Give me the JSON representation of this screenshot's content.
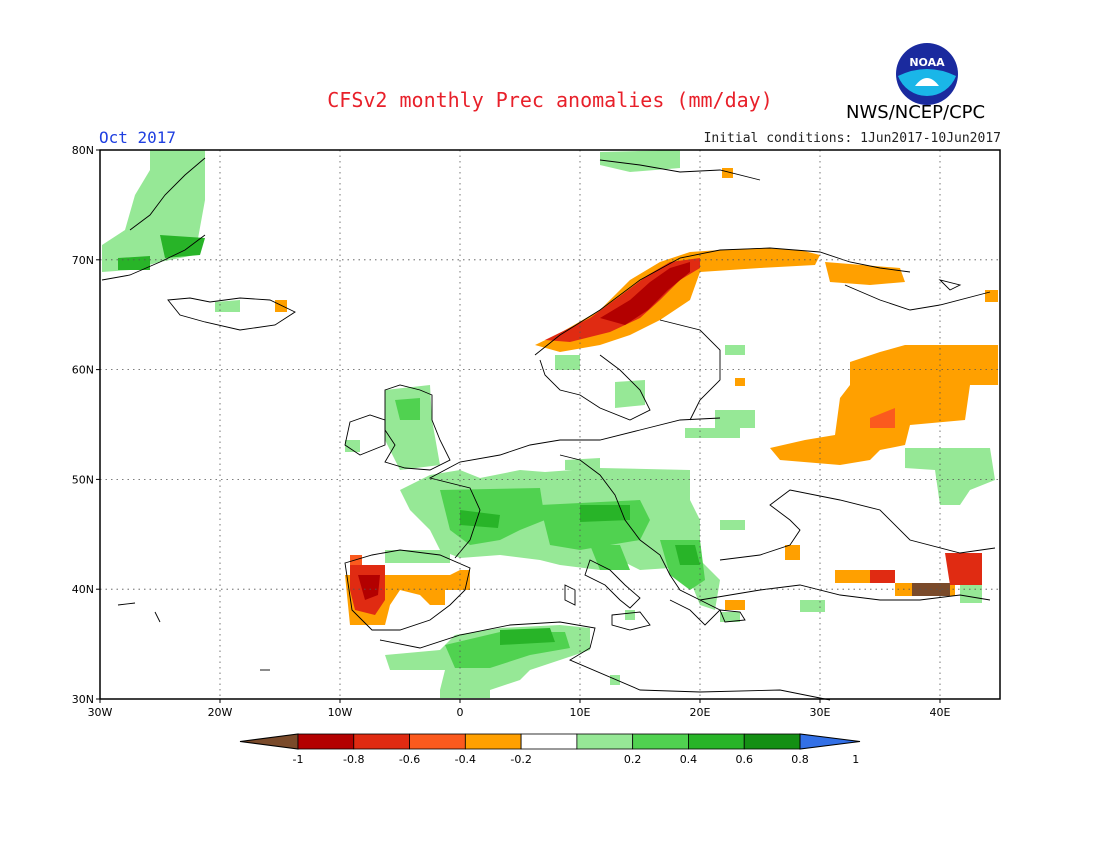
{
  "title": "CFSv2 monthly Prec anomalies (mm/day)",
  "month": "Oct 2017",
  "initial_conditions": "Initial conditions: 1Jun2017-10Jun2017",
  "agency": "NWS/NCEP/CPC",
  "logo_text": "NOAA",
  "lat_labels": [
    "80N",
    "70N",
    "60N",
    "50N",
    "40N",
    "30N"
  ],
  "lon_labels": [
    "30W",
    "20W",
    "10W",
    "0",
    "10E",
    "20E",
    "30E",
    "40E"
  ],
  "colorbar": {
    "labels": [
      "-1",
      "-0.8",
      "-0.6",
      "-0.4",
      "-0.2",
      "0.2",
      "0.4",
      "0.6",
      "0.8",
      "1"
    ],
    "colors": [
      "#7a4a2a",
      "#b30000",
      "#e02b12",
      "#fb5a1e",
      "#ffa000",
      "#ffffff",
      "#96e896",
      "#50d250",
      "#28b428",
      "#148f14",
      "#3370e6"
    ]
  },
  "map_extent": {
    "lon": [
      -30,
      45
    ],
    "lat": [
      30,
      80
    ]
  },
  "anomaly_regions": [
    {
      "name": "Greenland",
      "category": "0.2-0.4"
    },
    {
      "name": "Iceland",
      "category": "0.2-0.4"
    },
    {
      "name": "Norway coast",
      "category": "-0.8 to -1"
    },
    {
      "name": "Northern Russia",
      "category": "-0.2 to -0.4"
    },
    {
      "name": "Western Russia",
      "category": "-0.2 to -0.4"
    },
    {
      "name": "Ireland and UK",
      "category": "0.2-0.6"
    },
    {
      "name": "France",
      "category": "0.2-0.8"
    },
    {
      "name": "Alps and Italy",
      "category": "0.4-0.8"
    },
    {
      "name": "Balkans",
      "category": "0.4-0.8"
    },
    {
      "name": "Portugal",
      "category": "-0.6 to -0.8"
    },
    {
      "name": "Spain",
      "category": "-0.2 to -0.4"
    },
    {
      "name": "Northwest Africa",
      "category": "0.4-0.8"
    },
    {
      "name": "Turkey east",
      "category": "-0.4 to -0.8"
    },
    {
      "name": "Caucasus",
      "category": "0.2-0.4"
    }
  ]
}
